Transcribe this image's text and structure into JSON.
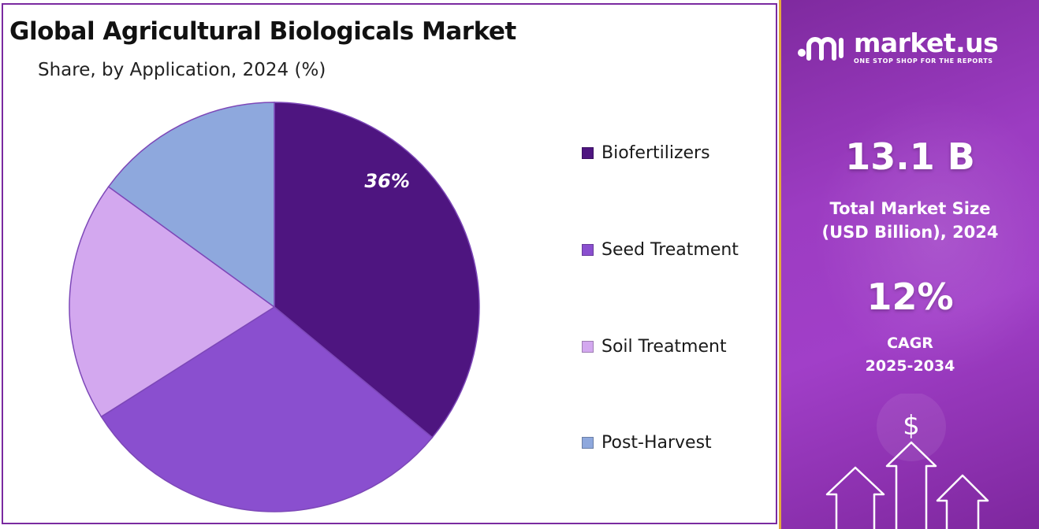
{
  "chart_data": {
    "type": "pie",
    "title": "Global Agricultural Biologicals Market",
    "subtitle": "Share, by Application, 2024 (%)",
    "categories": [
      "Biofertilizers",
      "Seed Treatment",
      "Soil Treatment",
      "Post-Harvest"
    ],
    "values": [
      36,
      30,
      19,
      15
    ],
    "colors": [
      "#4e1580",
      "#8a4fcf",
      "#d3a8ef",
      "#8ea8dd"
    ],
    "data_labels": [
      "36%",
      "",
      "",
      ""
    ],
    "legend_position": "right"
  },
  "side_panel": {
    "brand_name": "market.us",
    "brand_tagline": "ONE STOP SHOP FOR THE REPORTS",
    "market_size_value": "13.1 B",
    "market_size_label_line1": "Total Market Size",
    "market_size_label_line2": "(USD Billion), 2024",
    "cagr_value": "12%",
    "cagr_label_line1": "CAGR",
    "cagr_label_line2": "2025-2034",
    "currency_symbol": "$",
    "icons": [
      "market-us-logo-icon",
      "dollar-icon",
      "arrow-up-icon"
    ]
  }
}
